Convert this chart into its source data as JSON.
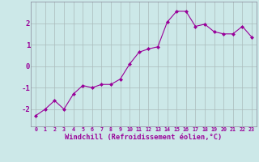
{
  "x": [
    0,
    1,
    2,
    3,
    4,
    5,
    6,
    7,
    8,
    9,
    10,
    11,
    12,
    13,
    14,
    15,
    16,
    17,
    18,
    19,
    20,
    21,
    22,
    23
  ],
  "y": [
    -2.3,
    -2.0,
    -1.6,
    -2.0,
    -1.3,
    -0.9,
    -1.0,
    -0.85,
    -0.85,
    -0.6,
    0.1,
    0.65,
    0.8,
    0.9,
    2.05,
    2.55,
    2.55,
    1.85,
    1.95,
    1.6,
    1.5,
    1.5,
    1.85,
    1.35
  ],
  "line_color": "#990099",
  "marker": "D",
  "marker_size": 2,
  "bg_color": "#cce8e8",
  "grid_color": "#aabbbb",
  "xlabel": "Windchill (Refroidissement éolien,°C)",
  "tick_color": "#990099",
  "ylim": [
    -2.8,
    3.0
  ],
  "xlim": [
    -0.5,
    23.5
  ],
  "yticks": [
    -2,
    -1,
    0,
    1,
    2
  ],
  "xticks": [
    0,
    1,
    2,
    3,
    4,
    5,
    6,
    7,
    8,
    9,
    10,
    11,
    12,
    13,
    14,
    15,
    16,
    17,
    18,
    19,
    20,
    21,
    22,
    23
  ]
}
